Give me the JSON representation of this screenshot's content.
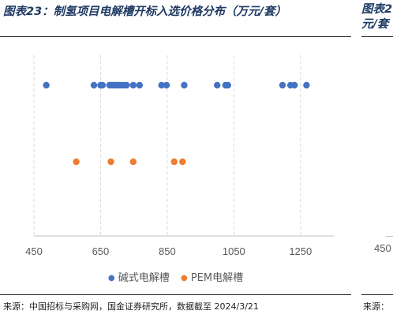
{
  "title": "图表23：制氢项目电解槽开标入选价格分布（万元/套）",
  "side_title_line1": "图表2",
  "side_title_line2": "元/套",
  "side_tick": "450",
  "source": "来源：中国招标与采购网，国金证券研究所，数据截至 2024/3/21",
  "side_source": "来源：",
  "colors": {
    "alkaline": "#4472c4",
    "pem": "#ed7d31",
    "title": "#1f3a63"
  },
  "chart_data": {
    "type": "scatter",
    "xlim": [
      450,
      1350
    ],
    "xticks": [
      450,
      650,
      850,
      1050,
      1250
    ],
    "grid": "vertical dashed",
    "legend_position": "bottom",
    "series": [
      {
        "name": "碱式电解槽",
        "y": 2,
        "x": [
          487,
          630,
          650,
          656,
          677,
          684,
          690,
          695,
          700,
          706,
          712,
          720,
          728,
          748,
          767,
          833,
          848,
          901,
          1000,
          1025,
          1032,
          1196,
          1220,
          1232,
          1268
        ]
      },
      {
        "name": "PEM电解槽",
        "y": 1,
        "x": [
          577,
          681,
          748,
          871,
          896
        ]
      }
    ]
  }
}
